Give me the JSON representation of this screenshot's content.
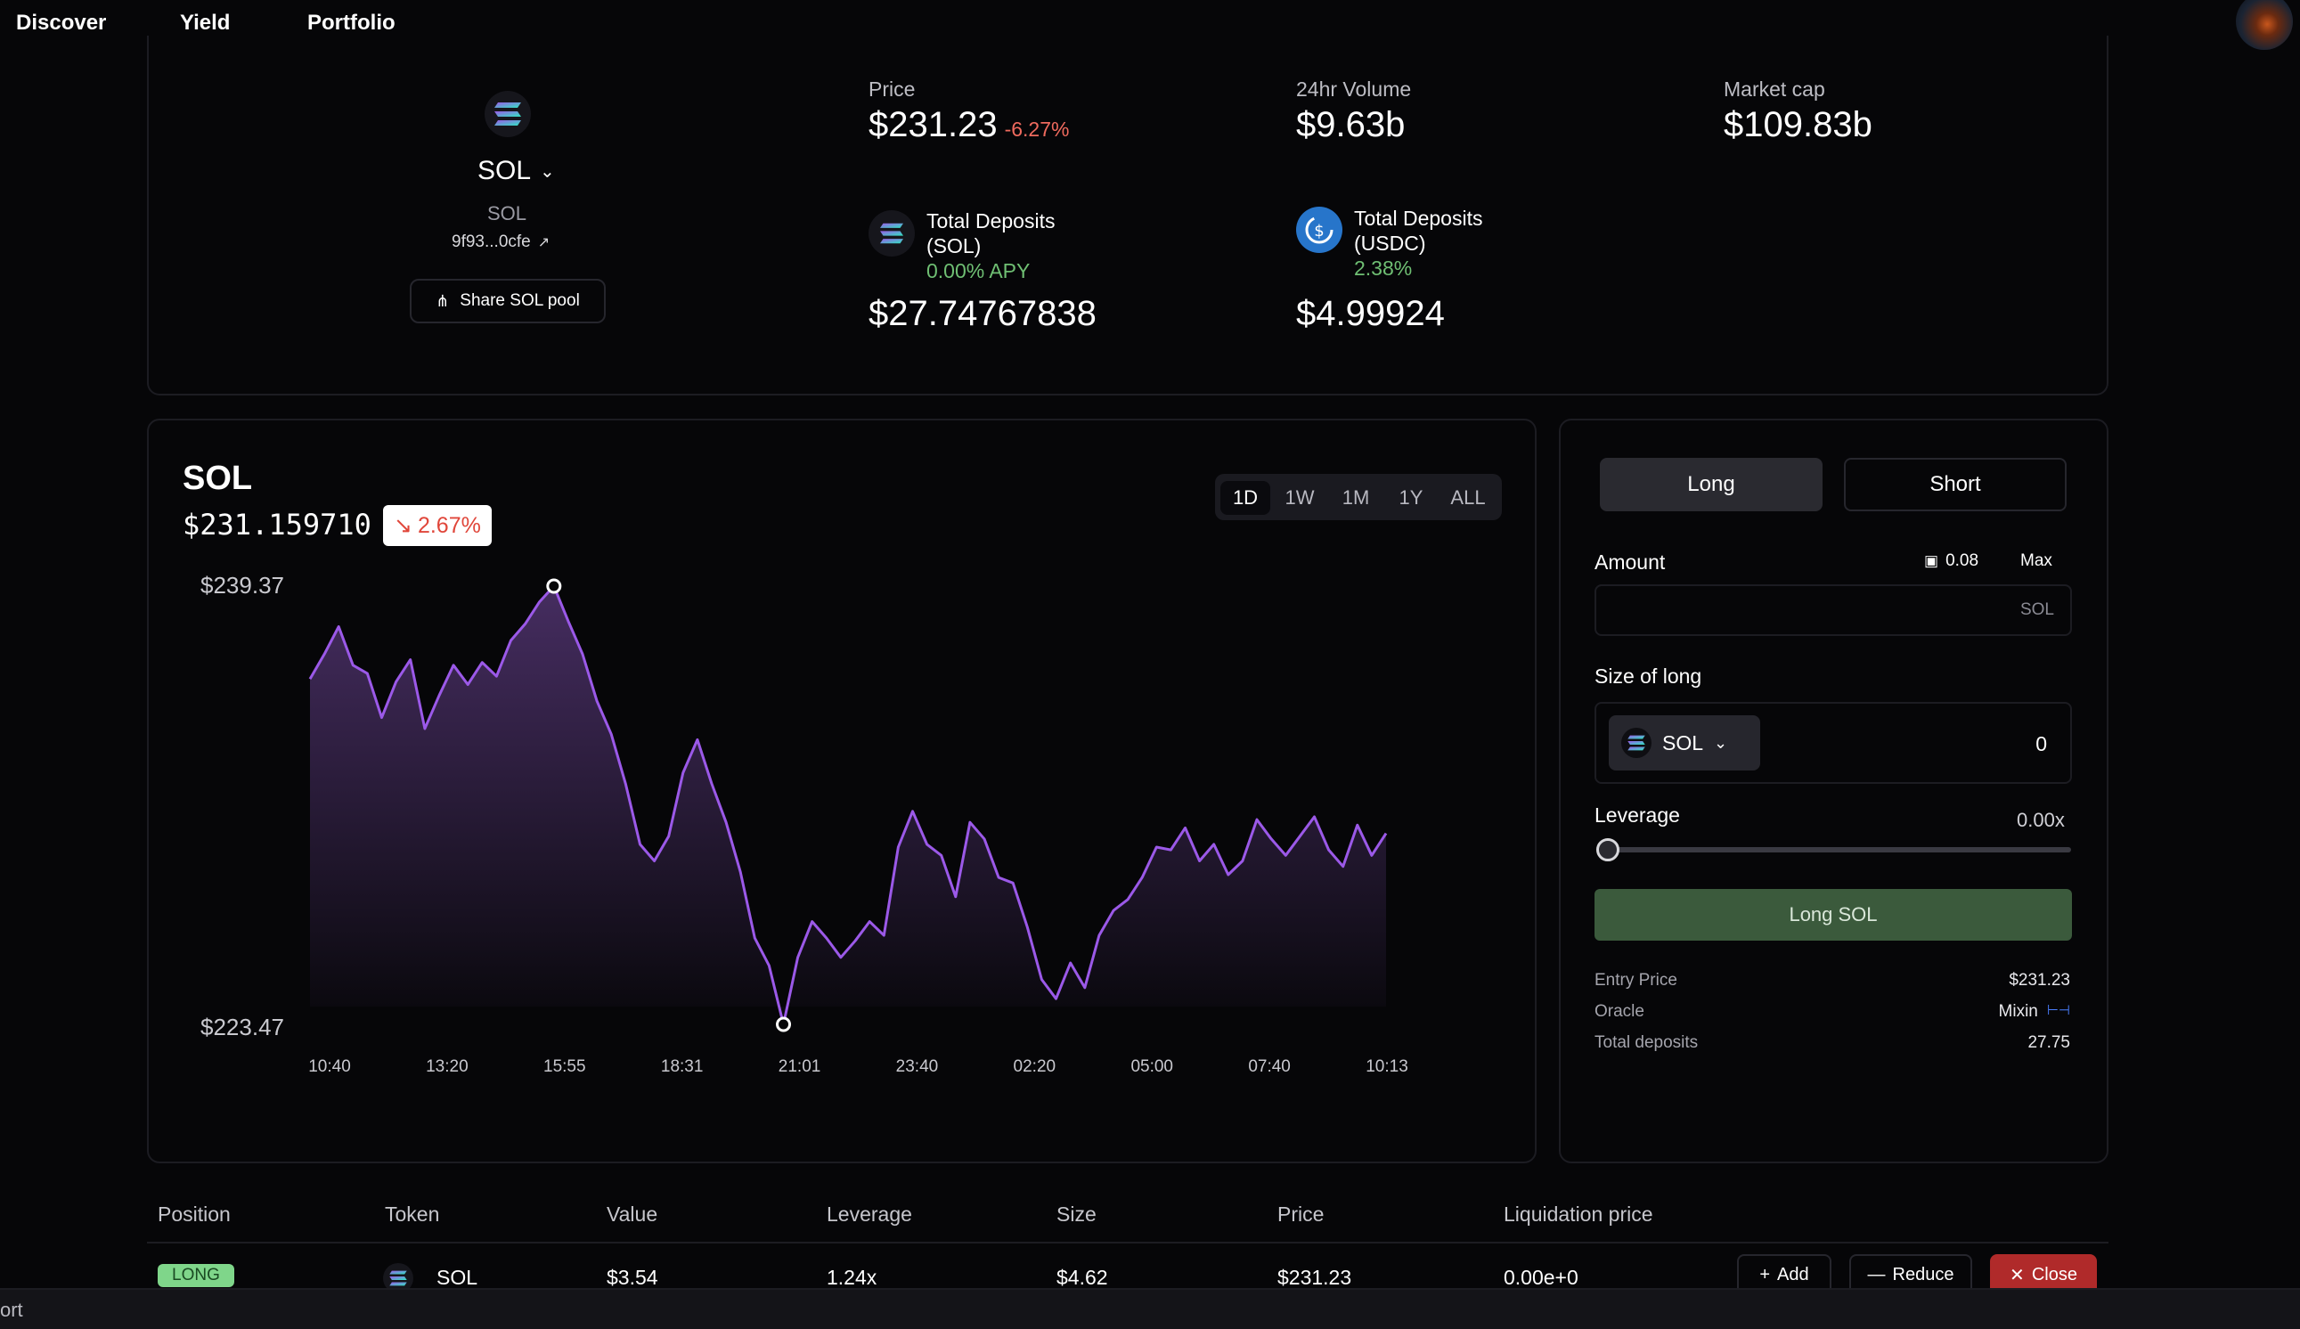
{
  "nav": {
    "items": [
      "Discover",
      "Yield",
      "Portfolio"
    ]
  },
  "pool": {
    "symbol": "SOL",
    "name": "SOL",
    "address": "9f93...0cfe",
    "share_label": "Share SOL pool"
  },
  "stats": {
    "price_label": "Price",
    "price": "$231.23",
    "price_change": "-6.27%",
    "volume_label": "24hr Volume",
    "volume": "$9.63b",
    "mcap_label": "Market cap",
    "mcap": "$109.83b",
    "dep_sol_label_1": "Total Deposits",
    "dep_sol_label_2": "(SOL)",
    "dep_sol_apy": "0.00% APY",
    "dep_sol_value": "$27.74767838",
    "dep_usdc_label_1": "Total Deposits",
    "dep_usdc_label_2": "(USDC)",
    "dep_usdc_apy": "2.38%",
    "dep_usdc_value": "$4.99924"
  },
  "chart_header": {
    "title": "SOL",
    "price": "$231.159710",
    "change": "2.67%",
    "timeframes": [
      "1D",
      "1W",
      "1M",
      "1Y",
      "ALL"
    ],
    "active_timeframe": "1D"
  },
  "chart_data": {
    "type": "area",
    "high_label": "$239.37",
    "low_label": "$223.47",
    "x_ticks": [
      "10:40",
      "13:20",
      "15:55",
      "18:31",
      "21:01",
      "23:40",
      "02:20",
      "05:00",
      "07:40",
      "10:13"
    ],
    "ylim": [
      223.47,
      239.37
    ],
    "values": [
      236.0,
      236.9,
      237.9,
      236.5,
      236.2,
      234.6,
      235.9,
      236.7,
      234.2,
      235.4,
      236.5,
      235.8,
      236.6,
      236.1,
      237.4,
      238.0,
      238.8,
      239.37,
      238.1,
      236.9,
      235.2,
      234.0,
      232.2,
      230.0,
      229.4,
      230.3,
      232.6,
      233.8,
      232.2,
      230.8,
      229.0,
      226.6,
      225.6,
      223.47,
      225.9,
      227.2,
      226.6,
      225.9,
      226.5,
      227.2,
      226.7,
      229.9,
      231.2,
      230.0,
      229.6,
      228.1,
      230.8,
      230.2,
      228.8,
      228.6,
      227.0,
      225.1,
      224.4,
      225.7,
      224.8,
      226.7,
      227.6,
      228.0,
      228.8,
      229.9,
      229.8,
      230.6,
      229.4,
      230.0,
      228.9,
      229.4,
      230.9,
      230.2,
      229.6,
      230.3,
      231.0,
      229.8,
      229.2,
      230.7,
      229.6,
      230.4
    ]
  },
  "trade": {
    "long_label": "Long",
    "short_label": "Short",
    "amount_label": "Amount",
    "balance": "0.08",
    "max_label": "Max",
    "amount_unit": "SOL",
    "size_label": "Size of long",
    "size_token": "SOL",
    "size_value": "0",
    "leverage_label": "Leverage",
    "leverage_value": "0.00x",
    "leverage_fraction": 0,
    "submit_label": "Long SOL",
    "entry_price_label": "Entry Price",
    "entry_price": "$231.23",
    "oracle_label": "Oracle",
    "oracle": "Mixin",
    "total_deposits_label": "Total deposits",
    "total_deposits": "27.75"
  },
  "positions": {
    "headers": [
      "Position",
      "Token",
      "Value",
      "Leverage",
      "Size",
      "Price",
      "Liquidation price"
    ],
    "row": {
      "position": "LONG",
      "token": "SOL",
      "value": "$3.54",
      "leverage": "1.24x",
      "size": "$4.62",
      "price": "$231.23",
      "liquidation": "0.00e+0"
    },
    "add_label": "Add",
    "reduce_label": "Reduce",
    "close_label": "Close"
  },
  "footer": {
    "text": "ort"
  },
  "colors": {
    "accent_line": "#9b59e8",
    "long_active": "#2a2a30",
    "submit": "#3b5a3c",
    "close_btn": "#b02a2a",
    "long_badge": "#7fd68a"
  }
}
